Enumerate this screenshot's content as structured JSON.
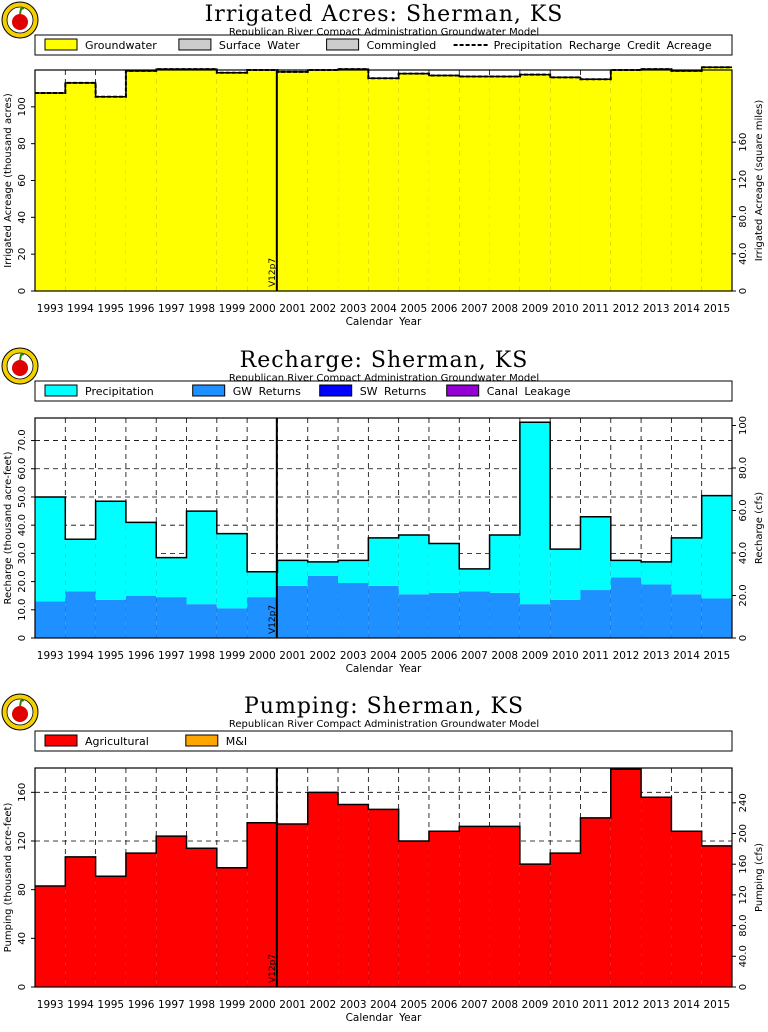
{
  "chart_data": [
    {
      "type": "bar",
      "title": "Irrigated Acres: Sherman, KS",
      "subtitle": "Republican River Compact Administration Groundwater Model",
      "xlabel": "Calendar Year",
      "ylabel": "Irrigated Acreage (thousand acres)",
      "y2label": "Irrigated Acreage (square miles)",
      "categories": [
        "1993",
        "1994",
        "1995",
        "1996",
        "1997",
        "1998",
        "1999",
        "2000",
        "2001",
        "2002",
        "2003",
        "2004",
        "2005",
        "2006",
        "2007",
        "2008",
        "2009",
        "2010",
        "2011",
        "2012",
        "2013",
        "2014",
        "2015"
      ],
      "ylim": [
        0,
        120
      ],
      "yticks": [
        0,
        20,
        40,
        60,
        80,
        100
      ],
      "y2ticks": [
        "0",
        "40.0",
        "80.0",
        "120",
        "160"
      ],
      "legend": [
        "Groundwater",
        "Surface Water",
        "Commingled",
        "Precipitation Recharge Credit Acreage"
      ],
      "legend_position": "top",
      "grid": true,
      "series": [
        {
          "name": "Groundwater",
          "color": "#ffff00",
          "values": [
            107.5,
            113,
            105.5,
            119.5,
            120.5,
            120.5,
            118.5,
            120,
            119,
            120,
            120.5,
            115.5,
            118,
            117,
            116.5,
            116.5,
            117.5,
            116,
            115,
            120,
            120.5,
            119.5,
            121.5
          ]
        },
        {
          "name": "Precipitation Recharge Credit Acreage",
          "style": "dashed",
          "values": [
            107.5,
            113,
            105.5,
            119.5,
            120.5,
            120.5,
            118.5,
            120,
            119,
            120,
            120.5,
            115.5,
            118,
            117,
            116.5,
            116.5,
            117.5,
            116,
            115,
            120,
            120.5,
            119.5,
            121.5
          ]
        }
      ],
      "marker_label": "V12p7"
    },
    {
      "type": "bar",
      "title": "Recharge: Sherman, KS",
      "subtitle": "Republican River Compact Administration Groundwater Model",
      "xlabel": "Calendar Year",
      "ylabel": "Recharge (thousand acre-feet)",
      "y2label": "Recharge (cfs)",
      "categories": [
        "1993",
        "1994",
        "1995",
        "1996",
        "1997",
        "1998",
        "1999",
        "2000",
        "2001",
        "2002",
        "2003",
        "2004",
        "2005",
        "2006",
        "2007",
        "2008",
        "2009",
        "2010",
        "2011",
        "2012",
        "2013",
        "2014",
        "2015"
      ],
      "ylim": [
        0,
        78
      ],
      "yticks": [
        0,
        10,
        20,
        30,
        40,
        50,
        60,
        70
      ],
      "yticklabels": [
        "0",
        "10.0",
        "20.0",
        "30.0",
        "40.0",
        "50.0",
        "60.0",
        "70.0"
      ],
      "y2ticks": [
        "0",
        "20.0",
        "40.0",
        "60.0",
        "80.0",
        "100"
      ],
      "legend": [
        "Precipitation",
        "GW Returns",
        "SW Returns",
        "Canal Leakage"
      ],
      "legend_position": "top",
      "grid": true,
      "series": [
        {
          "name": "GW Returns",
          "color": "#1e90ff",
          "values": [
            13,
            16.5,
            13.5,
            15,
            14.5,
            12,
            10.5,
            14.5,
            18.5,
            22,
            19.5,
            18.5,
            15.5,
            16,
            16.5,
            16,
            12,
            13.5,
            17,
            21.5,
            19,
            15.5,
            14
          ]
        },
        {
          "name": "Precipitation",
          "color": "#00ffff",
          "values": [
            37,
            18.5,
            35,
            26,
            14,
            33,
            26.5,
            9,
            9,
            5,
            8,
            17,
            21,
            17.5,
            8,
            20.5,
            64.5,
            18,
            26,
            6,
            8,
            20,
            36.5
          ]
        },
        {
          "name": "SW Returns",
          "color": "#0000ff",
          "values": [
            0,
            0,
            0,
            0,
            0,
            0,
            0,
            0,
            0,
            0,
            0,
            0,
            0,
            0,
            0,
            0,
            0,
            0,
            0,
            0,
            0,
            0,
            0
          ]
        },
        {
          "name": "Canal Leakage",
          "color": "#9400d3",
          "values": [
            0,
            0,
            0,
            0,
            0,
            0,
            0,
            0,
            0,
            0,
            0,
            0,
            0,
            0,
            0,
            0,
            0,
            0,
            0,
            0,
            0,
            0,
            0
          ]
        }
      ],
      "marker_label": "V12p7"
    },
    {
      "type": "bar",
      "title": "Pumping: Sherman, KS",
      "subtitle": "Republican River Compact Administration Groundwater Model",
      "xlabel": "Calendar Year",
      "ylabel": "Pumping (thousand acre-feet)",
      "y2label": "Pumping (cfs)",
      "categories": [
        "1993",
        "1994",
        "1995",
        "1996",
        "1997",
        "1998",
        "1999",
        "2000",
        "2001",
        "2002",
        "2003",
        "2004",
        "2005",
        "2006",
        "2007",
        "2008",
        "2009",
        "2010",
        "2011",
        "2012",
        "2013",
        "2014",
        "2015"
      ],
      "ylim": [
        0,
        180
      ],
      "yticks": [
        0,
        40,
        80,
        120,
        160
      ],
      "y2ticks": [
        "0",
        "40.0",
        "80.0",
        "120",
        "160",
        "200",
        "240"
      ],
      "legend": [
        "Agricultural",
        "M&I"
      ],
      "legend_position": "top",
      "grid": true,
      "series": [
        {
          "name": "Agricultural",
          "color": "#ff0000",
          "values": [
            83,
            107,
            91,
            110,
            124,
            114,
            98,
            135,
            134,
            160,
            150,
            146,
            120,
            128,
            132,
            132,
            101,
            110,
            139,
            179,
            156,
            128,
            116
          ]
        },
        {
          "name": "M&I",
          "color": "#ffa500",
          "values": [
            0,
            0,
            0,
            0,
            0,
            0,
            0,
            0,
            0,
            0,
            0,
            0,
            0,
            0,
            0,
            0,
            0,
            0,
            0,
            0,
            0,
            0,
            0
          ]
        }
      ],
      "marker_label": "V12p7"
    }
  ]
}
